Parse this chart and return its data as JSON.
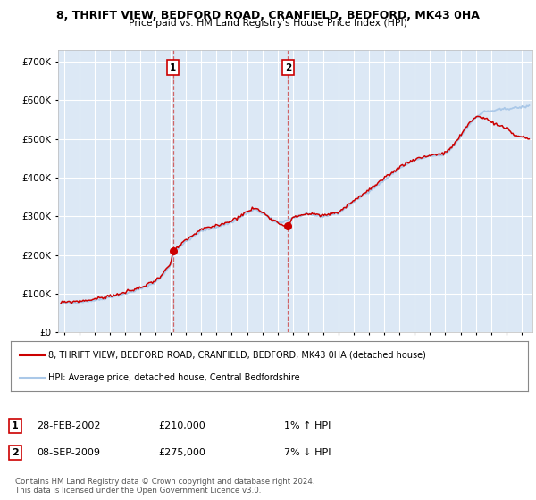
{
  "title1": "8, THRIFT VIEW, BEDFORD ROAD, CRANFIELD, BEDFORD, MK43 0HA",
  "title2": "Price paid vs. HM Land Registry's House Price Index (HPI)",
  "legend_red": "8, THRIFT VIEW, BEDFORD ROAD, CRANFIELD, BEDFORD, MK43 0HA (detached house)",
  "legend_blue": "HPI: Average price, detached house, Central Bedfordshire",
  "transaction1_label": "1",
  "transaction1_date": "28-FEB-2002",
  "transaction1_price": "£210,000",
  "transaction1_hpi": "1% ↑ HPI",
  "transaction1_year": 2002.15,
  "transaction1_value": 210000,
  "transaction2_label": "2",
  "transaction2_date": "08-SEP-2009",
  "transaction2_price": "£275,000",
  "transaction2_hpi": "7% ↓ HPI",
  "transaction2_year": 2009.68,
  "transaction2_value": 275000,
  "footer": "Contains HM Land Registry data © Crown copyright and database right 2024.\nThis data is licensed under the Open Government Licence v3.0.",
  "bg_color": "#ffffff",
  "plot_bg_color": "#dce8f5",
  "grid_color": "#ffffff",
  "red_color": "#cc0000",
  "blue_color": "#aac8e8",
  "ylim": [
    0,
    730000
  ],
  "yticks": [
    0,
    100000,
    200000,
    300000,
    400000,
    500000,
    600000,
    700000
  ],
  "xstart": 1994.6,
  "xend": 2025.7
}
